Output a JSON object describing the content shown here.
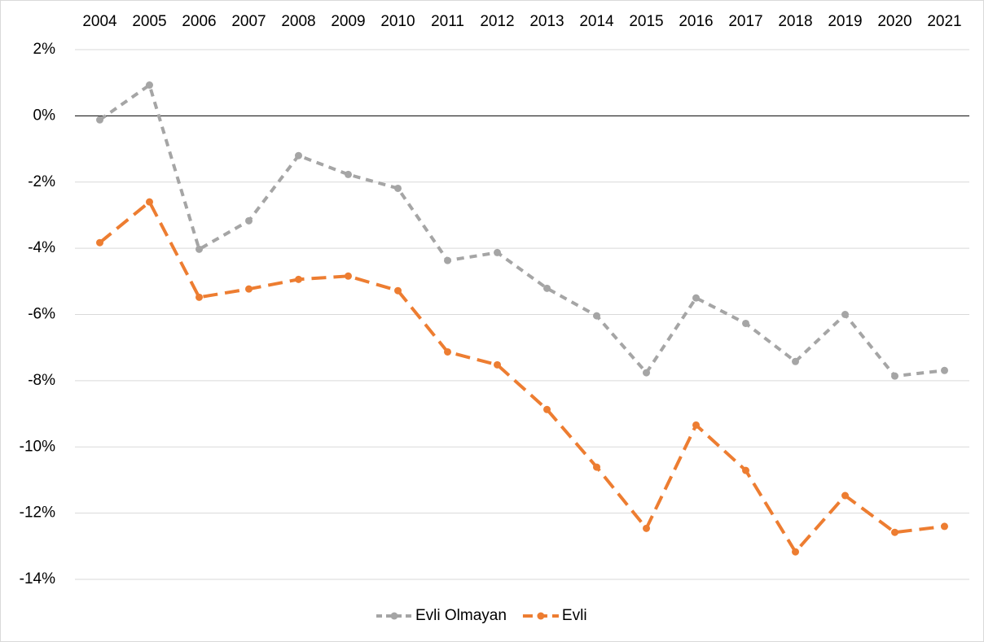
{
  "chart_data": {
    "type": "line",
    "categories": [
      "2004",
      "2005",
      "2006",
      "2007",
      "2008",
      "2009",
      "2010",
      "2011",
      "2012",
      "2013",
      "2014",
      "2015",
      "2016",
      "2017",
      "2018",
      "2019",
      "2020",
      "2021"
    ],
    "series": [
      {
        "name": "Evli Olmayan",
        "color": "#a5a5a5",
        "values": [
          -0.12,
          0.93,
          -4.03,
          -3.17,
          -1.2,
          -1.77,
          -2.19,
          -4.37,
          -4.13,
          -5.21,
          -6.04,
          -7.76,
          -5.5,
          -6.27,
          -7.42,
          -6.0,
          -7.86,
          -7.69
        ]
      },
      {
        "name": "Evli",
        "color": "#ed7d31",
        "values": [
          -3.83,
          -2.6,
          -5.48,
          -5.23,
          -4.94,
          -4.84,
          -5.28,
          -7.13,
          -7.52,
          -8.87,
          -10.61,
          -12.46,
          -9.34,
          -10.71,
          -13.17,
          -11.47,
          -12.58,
          -12.4
        ]
      }
    ],
    "ylim": [
      -14,
      2
    ],
    "yticks": [
      {
        "value": 2,
        "label": "2%"
      },
      {
        "value": 0,
        "label": "0%"
      },
      {
        "value": -2,
        "label": "-2%"
      },
      {
        "value": -4,
        "label": "-4%"
      },
      {
        "value": -6,
        "label": "-6%"
      },
      {
        "value": -8,
        "label": "-8%"
      },
      {
        "value": -10,
        "label": "-10%"
      },
      {
        "value": -12,
        "label": "-12%"
      },
      {
        "value": -14,
        "label": "-14%"
      }
    ],
    "grid": true,
    "legend": "bottom"
  }
}
